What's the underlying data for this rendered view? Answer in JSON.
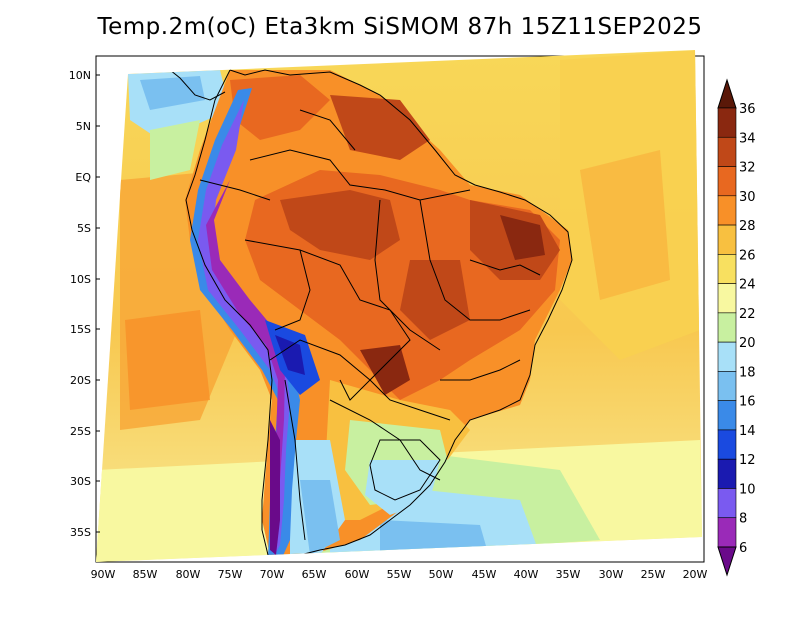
{
  "title": "Temp.2m(oC) Eta3km SiSMOM 87h 15Z11SEP2025",
  "map": {
    "lat_labels": [
      "10N",
      "5N",
      "EQ",
      "5S",
      "10S",
      "15S",
      "20S",
      "25S",
      "30S",
      "35S"
    ],
    "lon_labels": [
      "90W",
      "85W",
      "80W",
      "75W",
      "70W",
      "65W",
      "60W",
      "55W",
      "50W",
      "45W",
      "40W",
      "35W",
      "30W",
      "25W",
      "20W"
    ]
  },
  "colorbar": {
    "labels": [
      "6",
      "8",
      "10",
      "12",
      "14",
      "16",
      "18",
      "20",
      "22",
      "24",
      "26",
      "28",
      "30",
      "32",
      "34",
      "36"
    ],
    "colors": [
      "#6a0a8a",
      "#9a2ab8",
      "#7a5af0",
      "#1a1ab0",
      "#1a4ae0",
      "#3a8ae8",
      "#7ac0f0",
      "#a8e0f8",
      "#c8f0a0",
      "#f8f8a0",
      "#f8e060",
      "#f8c040",
      "#f89028",
      "#e86820",
      "#c04818",
      "#8a2810",
      "#5a1808"
    ]
  }
}
